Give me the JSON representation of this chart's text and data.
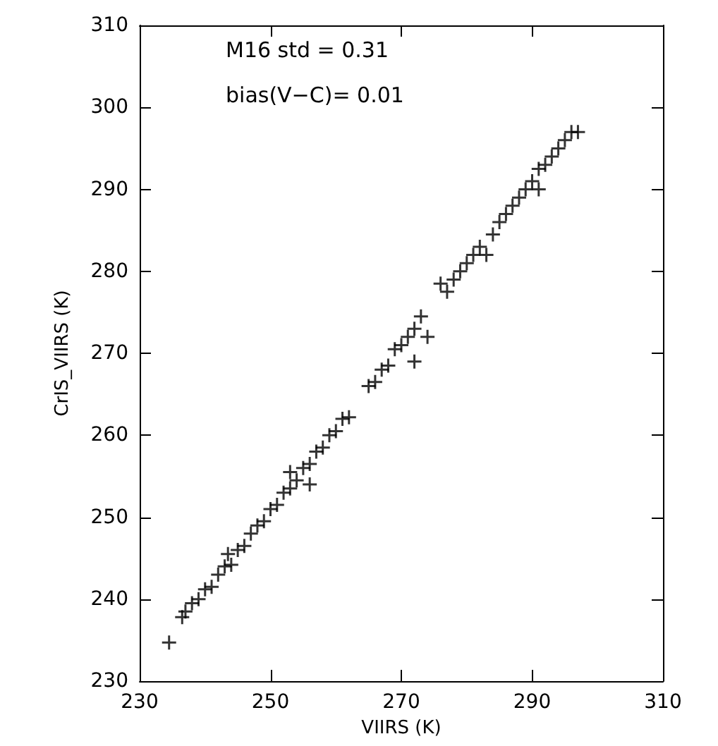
{
  "chart_data": {
    "type": "scatter",
    "xlabel": "VIIRS (K)",
    "ylabel": "CrIS_VIIRS (K)",
    "annotations": [
      "M16 std = 0.31",
      "bias(V−C)= 0.01"
    ],
    "xlim": [
      230,
      310
    ],
    "xticks": [
      230,
      250,
      270,
      290,
      310
    ],
    "ylim": [
      230,
      310
    ],
    "yticks": [
      230,
      240,
      250,
      260,
      270,
      280,
      290,
      300,
      310
    ],
    "marker": "cross",
    "series": [
      {
        "color": "#000000",
        "x": [
          234.5,
          236.5,
          237,
          238,
          239,
          240,
          241,
          242,
          243,
          243.5,
          244,
          245,
          246,
          247,
          248,
          249,
          250,
          251,
          252,
          253,
          253,
          254,
          255,
          256,
          256,
          257,
          258,
          259,
          260,
          261,
          262,
          265,
          266,
          267,
          268,
          269,
          270,
          271,
          272,
          272,
          273,
          274,
          276,
          277,
          278,
          279,
          280,
          281,
          282,
          283,
          284,
          285,
          286,
          287,
          288,
          289,
          290,
          291,
          291,
          292,
          293,
          294,
          295,
          296,
          297
        ],
        "values": [
          234.7,
          237.8,
          238.5,
          239.5,
          240,
          241.2,
          241.5,
          243,
          244,
          245.5,
          244.2,
          246,
          246.5,
          248,
          249,
          249.5,
          251,
          251.5,
          253,
          253.5,
          255.5,
          254.5,
          256,
          256.5,
          254,
          258,
          258.5,
          260,
          260.5,
          262,
          262.2,
          266,
          266.5,
          268,
          268.5,
          270.5,
          271,
          272,
          273,
          269,
          274.5,
          272,
          278.5,
          277.5,
          279,
          280,
          281,
          282,
          283,
          282,
          284.5,
          286,
          287,
          288,
          289,
          290,
          291,
          290,
          292.5,
          293,
          294,
          295,
          296,
          297,
          297
        ]
      }
    ]
  }
}
